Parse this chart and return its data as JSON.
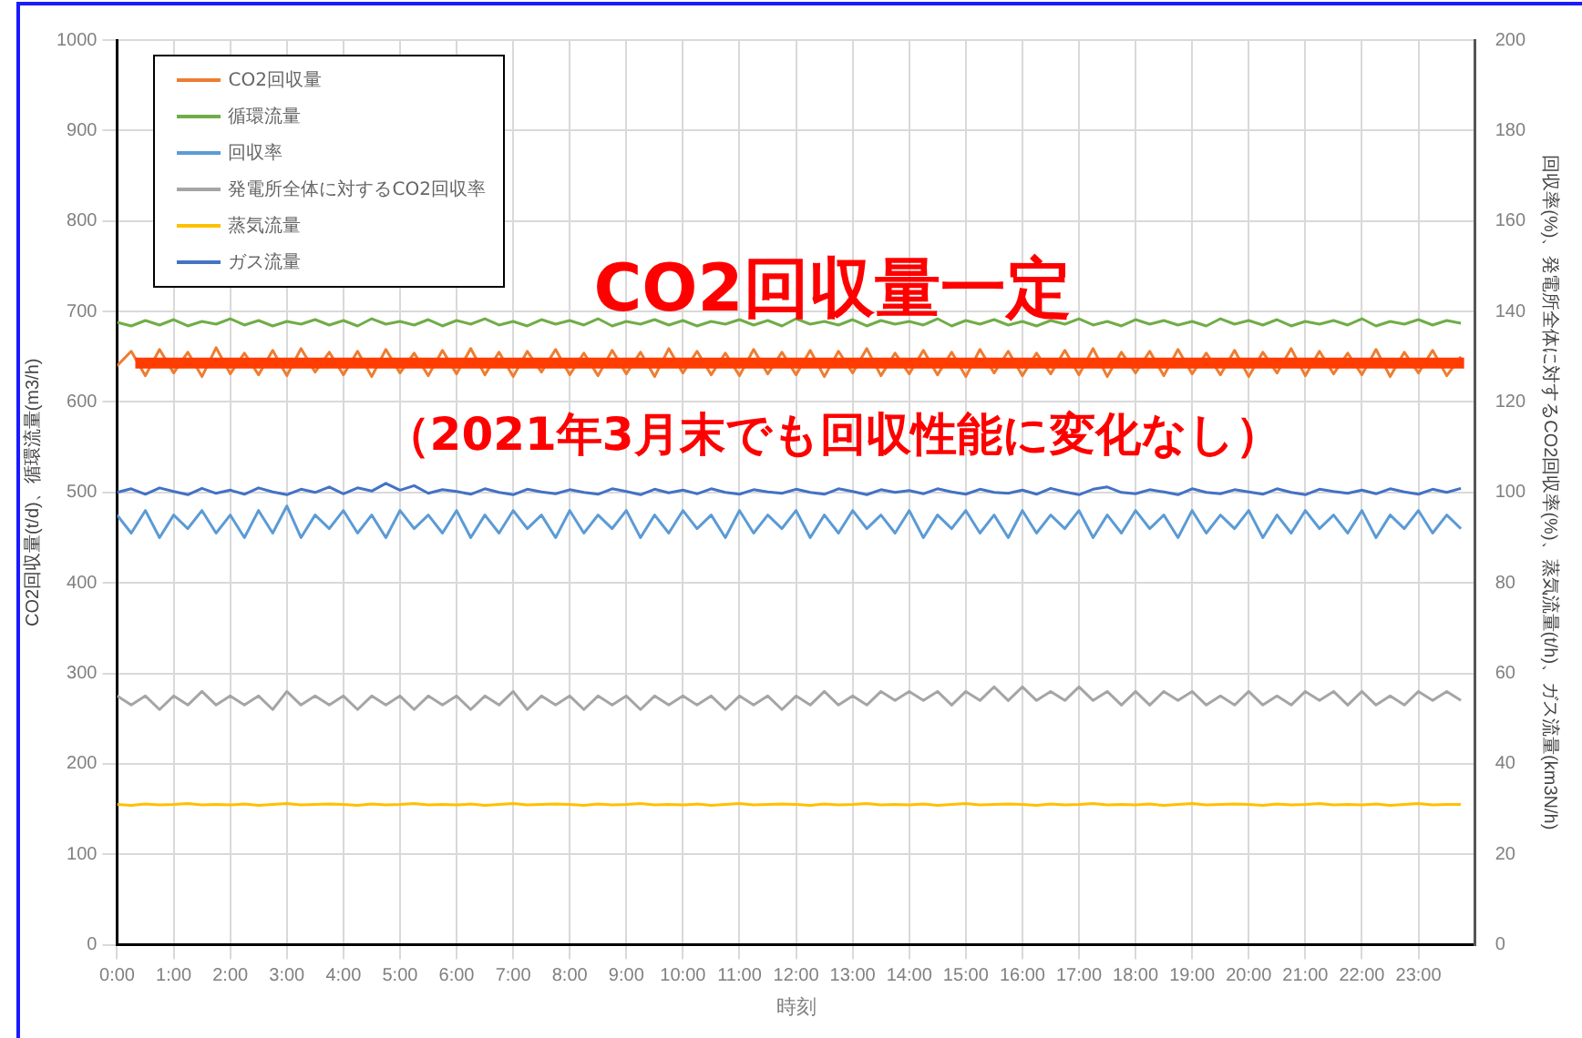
{
  "chart_data": {
    "type": "line",
    "xlabel": "時刻",
    "ylabel": "CO2回収量(t/d)、循環流量(m3/h)",
    "y2label": "回収率(%)、発電所全体に対するCO2回収率(%)、蒸気流量(t/h)、ガス流量(km3N/h)",
    "annotations": [
      "CO2回収量一定",
      "（2021年3月末でも回収性能に変化なし）"
    ],
    "x": [
      0,
      0.25,
      0.5,
      0.75,
      1,
      1.25,
      1.5,
      1.75,
      2,
      2.25,
      2.5,
      2.75,
      3,
      3.25,
      3.5,
      3.75,
      4,
      4.25,
      4.5,
      4.75,
      5,
      5.25,
      5.5,
      5.75,
      6,
      6.25,
      6.5,
      6.75,
      7,
      7.25,
      7.5,
      7.75,
      8,
      8.25,
      8.5,
      8.75,
      9,
      9.25,
      9.5,
      9.75,
      10,
      10.25,
      10.5,
      10.75,
      11,
      11.25,
      11.5,
      11.75,
      12,
      12.25,
      12.5,
      12.75,
      13,
      13.25,
      13.5,
      13.75,
      14,
      14.25,
      14.5,
      14.75,
      15,
      15.25,
      15.5,
      15.75,
      16,
      16.25,
      16.5,
      16.75,
      17,
      17.25,
      17.5,
      17.75,
      18,
      18.25,
      18.5,
      18.75,
      19,
      19.25,
      19.5,
      19.75,
      20,
      20.25,
      20.5,
      20.75,
      21,
      21.25,
      21.5,
      21.75,
      22,
      22.25,
      22.5,
      22.75,
      23,
      23.25,
      23.5,
      23.75
    ],
    "series": [
      {
        "name": "CO2回収量",
        "color": "#ed7d31",
        "values": [
          640,
          656,
          629,
          658,
          632,
          655,
          628,
          660,
          631,
          654,
          630,
          657,
          629,
          659,
          633,
          655,
          630,
          656,
          628,
          658,
          632,
          654,
          629,
          657,
          631,
          659,
          630,
          655,
          628,
          656,
          633,
          658,
          630,
          654,
          629,
          657,
          631,
          655,
          628,
          659,
          632,
          656,
          630,
          654,
          629,
          658,
          631,
          655,
          630,
          657,
          628,
          656,
          632,
          659,
          629,
          654,
          631,
          657,
          630,
          655,
          628,
          658,
          632,
          656,
          629,
          654,
          631,
          657,
          630,
          659,
          628,
          655,
          632,
          656,
          629,
          658,
          631,
          654,
          630,
          657,
          628,
          655,
          632,
          659,
          629,
          656,
          631,
          654,
          630,
          658,
          628,
          655,
          632,
          657,
          629,
          650
        ]
      },
      {
        "name": "循環流量",
        "color": "#70ad47",
        "values": [
          688,
          684,
          690,
          685,
          691,
          684,
          689,
          686,
          692,
          685,
          690,
          684,
          689,
          686,
          691,
          685,
          690,
          684,
          692,
          686,
          689,
          685,
          691,
          684,
          690,
          686,
          692,
          685,
          689,
          684,
          691,
          686,
          690,
          685,
          692,
          684,
          689,
          686,
          691,
          685,
          690,
          684,
          689,
          686,
          691,
          685,
          690,
          684,
          692,
          686,
          689,
          685,
          691,
          684,
          690,
          686,
          689,
          685,
          692,
          684,
          690,
          686,
          691,
          685,
          689,
          684,
          690,
          686,
          692,
          685,
          689,
          684,
          691,
          686,
          690,
          685,
          689,
          684,
          692,
          686,
          690,
          685,
          691,
          684,
          689,
          686,
          690,
          685,
          692,
          684,
          689,
          686,
          691,
          685,
          690,
          687
        ]
      },
      {
        "name": "回収率",
        "color": "#5b9bd5",
        "axis": "y2",
        "values": [
          95,
          91,
          96,
          90,
          95,
          92,
          96,
          91,
          95,
          90,
          96,
          91,
          97,
          90,
          95,
          92,
          96,
          91,
          95,
          90,
          96,
          92,
          95,
          91,
          96,
          90,
          95,
          91,
          96,
          92,
          95,
          90,
          96,
          91,
          95,
          92,
          96,
          90,
          95,
          91,
          96,
          92,
          95,
          90,
          96,
          91,
          95,
          92,
          96,
          90,
          95,
          91,
          96,
          92,
          95,
          91,
          96,
          90,
          95,
          92,
          96,
          91,
          95,
          90,
          96,
          91,
          95,
          92,
          96,
          90,
          95,
          91,
          96,
          92,
          95,
          90,
          96,
          91,
          95,
          92,
          96,
          90,
          95,
          91,
          96,
          92,
          95,
          91,
          96,
          90,
          95,
          92,
          96,
          91,
          95,
          92
        ]
      },
      {
        "name": "発電所全体に対するCO2回収率",
        "color": "#a5a5a5",
        "axis": "y2",
        "values": [
          55,
          53,
          55,
          52,
          55,
          53,
          56,
          53,
          55,
          53,
          55,
          52,
          56,
          53,
          55,
          53,
          55,
          52,
          55,
          53,
          55,
          52,
          55,
          53,
          55,
          52,
          55,
          53,
          56,
          52,
          55,
          53,
          55,
          52,
          55,
          53,
          55,
          52,
          55,
          53,
          55,
          53,
          55,
          52,
          55,
          53,
          55,
          52,
          55,
          53,
          56,
          53,
          55,
          53,
          56,
          54,
          56,
          54,
          56,
          53,
          56,
          54,
          57,
          54,
          57,
          54,
          56,
          54,
          57,
          54,
          56,
          53,
          56,
          53,
          56,
          54,
          56,
          53,
          55,
          53,
          56,
          53,
          55,
          53,
          56,
          54,
          56,
          53,
          56,
          53,
          55,
          53,
          56,
          54,
          56,
          54
        ]
      },
      {
        "name": "蒸気流量",
        "color": "#ffc000",
        "axis": "y2",
        "values": [
          31,
          30.8,
          31.1,
          30.9,
          31,
          31.2,
          30.9,
          31,
          30.9,
          31.1,
          30.8,
          31,
          31.2,
          30.9,
          31,
          31.1,
          31,
          30.8,
          31.1,
          30.9,
          31,
          31.2,
          30.9,
          31,
          30.9,
          31.1,
          30.8,
          31,
          31.2,
          30.9,
          31,
          31.1,
          31,
          30.8,
          31.1,
          30.9,
          31,
          31.2,
          30.9,
          31,
          30.9,
          31.1,
          30.8,
          31,
          31.2,
          30.9,
          31,
          31.1,
          31,
          30.8,
          31.1,
          30.9,
          31,
          31.2,
          30.9,
          31,
          30.9,
          31.1,
          30.8,
          31,
          31.2,
          30.9,
          31,
          31.1,
          31,
          30.8,
          31.1,
          30.9,
          31,
          31.2,
          30.9,
          31,
          30.9,
          31.1,
          30.8,
          31,
          31.2,
          30.9,
          31,
          31.1,
          31,
          30.8,
          31.1,
          30.9,
          31,
          31.2,
          30.9,
          31,
          30.9,
          31.1,
          30.8,
          31,
          31.2,
          30.9,
          31,
          31
        ]
      },
      {
        "name": "ガス流量",
        "color": "#4472c4",
        "axis": "y2",
        "values": [
          100,
          100.8,
          99.6,
          101,
          100.2,
          99.5,
          100.9,
          99.8,
          100.5,
          99.6,
          101,
          100.1,
          99.5,
          100.7,
          100,
          101.2,
          99.7,
          101,
          100.3,
          102,
          100.5,
          101.5,
          99.8,
          100.6,
          100.2,
          99.6,
          100.8,
          100,
          99.5,
          100.7,
          100.1,
          99.7,
          100.6,
          100,
          99.6,
          100.8,
          100.2,
          99.5,
          100.7,
          99.9,
          100.5,
          99.7,
          100.8,
          100,
          99.6,
          100.6,
          100.1,
          99.8,
          100.7,
          100,
          99.6,
          100.8,
          100.2,
          99.5,
          100.6,
          100,
          100.4,
          99.7,
          100.8,
          100.1,
          99.6,
          100.7,
          100,
          99.8,
          100.5,
          99.6,
          100.9,
          100.1,
          99.5,
          100.7,
          101.2,
          100,
          99.7,
          100.6,
          100.1,
          99.5,
          100.8,
          100,
          99.7,
          100.6,
          100.1,
          99.6,
          100.8,
          100,
          99.5,
          100.7,
          100.2,
          99.8,
          100.5,
          99.7,
          100.8,
          100.1,
          99.6,
          100.7,
          100,
          100.9
        ]
      }
    ],
    "ref_lines": [
      {
        "axis": "y",
        "value": 643,
        "color": "#ff3c00"
      }
    ],
    "xlim": [
      0,
      24
    ],
    "xticks": [
      {
        "value": 0,
        "label": "0:00"
      },
      {
        "value": 1,
        "label": "1:00"
      },
      {
        "value": 2,
        "label": "2:00"
      },
      {
        "value": 3,
        "label": "3:00"
      },
      {
        "value": 4,
        "label": "4:00"
      },
      {
        "value": 5,
        "label": "5:00"
      },
      {
        "value": 6,
        "label": "6:00"
      },
      {
        "value": 7,
        "label": "7:00"
      },
      {
        "value": 8,
        "label": "8:00"
      },
      {
        "value": 9,
        "label": "9:00"
      },
      {
        "value": 10,
        "label": "10:00"
      },
      {
        "value": 11,
        "label": "11:00"
      },
      {
        "value": 12,
        "label": "12:00"
      },
      {
        "value": 13,
        "label": "13:00"
      },
      {
        "value": 14,
        "label": "14:00"
      },
      {
        "value": 15,
        "label": "15:00"
      },
      {
        "value": 16,
        "label": "16:00"
      },
      {
        "value": 17,
        "label": "17:00"
      },
      {
        "value": 18,
        "label": "18:00"
      },
      {
        "value": 19,
        "label": "19:00"
      },
      {
        "value": 20,
        "label": "20:00"
      },
      {
        "value": 21,
        "label": "21:00"
      },
      {
        "value": 22,
        "label": "22:00"
      },
      {
        "value": 23,
        "label": "23:00"
      }
    ],
    "ylim": [
      0,
      1000
    ],
    "yticks": [
      0,
      100,
      200,
      300,
      400,
      500,
      600,
      700,
      800,
      900,
      1000
    ],
    "y2lim": [
      0,
      200
    ],
    "y2ticks": [
      0,
      20,
      40,
      60,
      80,
      100,
      120,
      140,
      160,
      180,
      200
    ],
    "grid": true,
    "legend": "top left",
    "marker": "none",
    "line_style": "solid"
  }
}
